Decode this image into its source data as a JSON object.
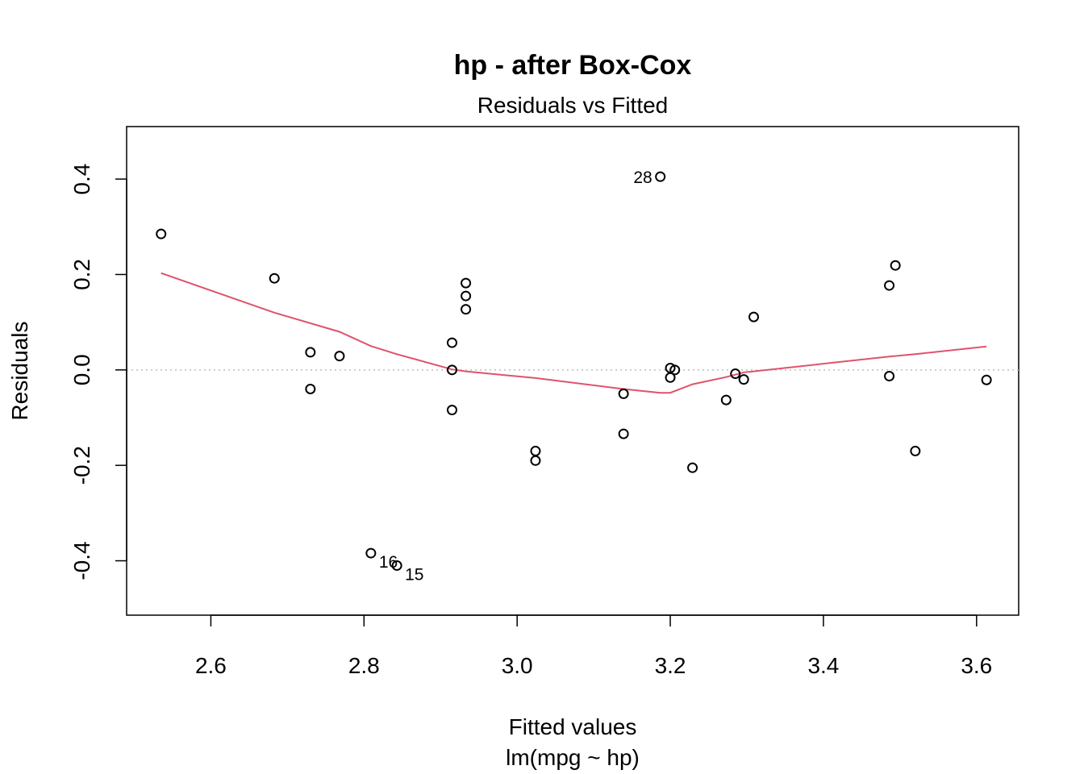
{
  "chart_data": {
    "type": "scatter",
    "title": "hp - after Box-Cox",
    "subtitle": "Residuals vs Fitted",
    "xlabel": "Fitted values",
    "xlabel2": "lm(mpg ~ hp)",
    "ylabel": "Residuals",
    "xlim": [
      2.49,
      3.655
    ],
    "ylim": [
      -0.514,
      0.51
    ],
    "x_ticks": [
      2.6,
      2.8,
      3.0,
      3.2,
      3.4,
      3.6
    ],
    "x_tick_labels": [
      "2.6",
      "2.8",
      "3.0",
      "3.2",
      "3.4",
      "3.6"
    ],
    "y_ticks": [
      -0.4,
      -0.2,
      0.0,
      0.2,
      0.4
    ],
    "y_tick_labels": [
      "-0.4",
      "-0.2",
      "0.0",
      "0.2",
      "0.4"
    ],
    "grid": false,
    "reference_line": {
      "y": 0,
      "color": "#bebebe",
      "style": "dotted"
    },
    "smoother_color": "#DF536B",
    "points": [
      {
        "x": 2.535,
        "y": 0.285
      },
      {
        "x": 2.683,
        "y": 0.192
      },
      {
        "x": 2.73,
        "y": 0.037
      },
      {
        "x": 2.73,
        "y": -0.04
      },
      {
        "x": 2.768,
        "y": 0.029
      },
      {
        "x": 2.809,
        "y": -0.384
      },
      {
        "x": 2.843,
        "y": -0.41
      },
      {
        "x": 2.915,
        "y": 0.057
      },
      {
        "x": 2.915,
        "y": 0.0
      },
      {
        "x": 2.915,
        "y": -0.084
      },
      {
        "x": 2.933,
        "y": 0.182
      },
      {
        "x": 2.933,
        "y": 0.155
      },
      {
        "x": 2.933,
        "y": 0.127
      },
      {
        "x": 3.024,
        "y": -0.17
      },
      {
        "x": 3.024,
        "y": -0.19
      },
      {
        "x": 3.139,
        "y": -0.05
      },
      {
        "x": 3.139,
        "y": -0.134
      },
      {
        "x": 3.187,
        "y": 0.405
      },
      {
        "x": 3.2,
        "y": 0.004
      },
      {
        "x": 3.2,
        "y": -0.016
      },
      {
        "x": 3.206,
        "y": 0.0
      },
      {
        "x": 3.229,
        "y": -0.205
      },
      {
        "x": 3.273,
        "y": -0.063
      },
      {
        "x": 3.285,
        "y": -0.008
      },
      {
        "x": 3.296,
        "y": -0.02
      },
      {
        "x": 3.309,
        "y": 0.111
      },
      {
        "x": 3.486,
        "y": 0.177
      },
      {
        "x": 3.486,
        "y": -0.013
      },
      {
        "x": 3.494,
        "y": 0.219
      },
      {
        "x": 3.52,
        "y": -0.17
      },
      {
        "x": 3.613,
        "y": -0.021
      }
    ],
    "labeled_points": [
      {
        "label": "28",
        "x": 3.187,
        "y": 0.405,
        "side": "left"
      },
      {
        "label": "16",
        "x": 2.809,
        "y": -0.384,
        "side": "right"
      },
      {
        "label": "15",
        "x": 2.843,
        "y": -0.41,
        "side": "right"
      }
    ],
    "smoother": [
      {
        "x": 2.535,
        "y": 0.203
      },
      {
        "x": 2.683,
        "y": 0.12
      },
      {
        "x": 2.768,
        "y": 0.08
      },
      {
        "x": 2.809,
        "y": 0.05
      },
      {
        "x": 2.843,
        "y": 0.033
      },
      {
        "x": 2.915,
        "y": 0.001
      },
      {
        "x": 2.933,
        "y": -0.003
      },
      {
        "x": 3.024,
        "y": -0.017
      },
      {
        "x": 3.139,
        "y": -0.04
      },
      {
        "x": 3.187,
        "y": -0.048
      },
      {
        "x": 3.2,
        "y": -0.048
      },
      {
        "x": 3.229,
        "y": -0.03
      },
      {
        "x": 3.273,
        "y": -0.015
      },
      {
        "x": 3.296,
        "y": -0.005
      },
      {
        "x": 3.309,
        "y": -0.003
      },
      {
        "x": 3.486,
        "y": 0.028
      },
      {
        "x": 3.52,
        "y": 0.033
      },
      {
        "x": 3.613,
        "y": 0.049
      }
    ]
  }
}
